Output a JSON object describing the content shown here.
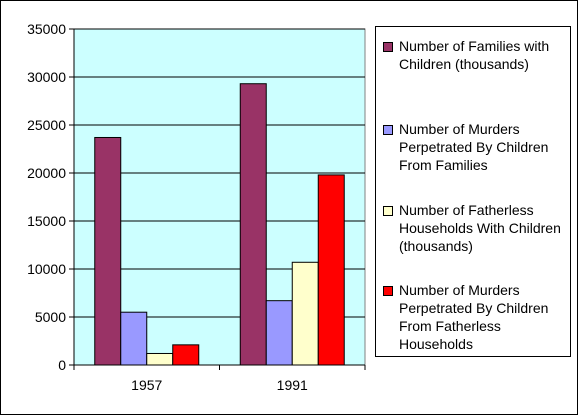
{
  "chart_data": {
    "type": "bar",
    "categories": [
      "1957",
      "1991"
    ],
    "ylim": [
      0,
      35000
    ],
    "yticks": [
      0,
      5000,
      10000,
      15000,
      20000,
      25000,
      30000,
      35000
    ],
    "grid": true,
    "legend_position": "right",
    "plot_background": "#ccffff",
    "series": [
      {
        "name": "Number of Families with Children (thousands)",
        "color": "#993366",
        "values": [
          23700,
          29300
        ]
      },
      {
        "name": "Number of Murders Perpetrated By Children From Families",
        "color": "#9999ff",
        "values": [
          5500,
          6700
        ]
      },
      {
        "name": "Number of Fatherless Households With Children (thousands)",
        "color": "#ffffcc",
        "values": [
          1200,
          10700
        ]
      },
      {
        "name": "Number of Murders Perpetrated By Children From Fatherless Households",
        "color": "#ff0000",
        "values": [
          2100,
          19800
        ]
      }
    ]
  }
}
